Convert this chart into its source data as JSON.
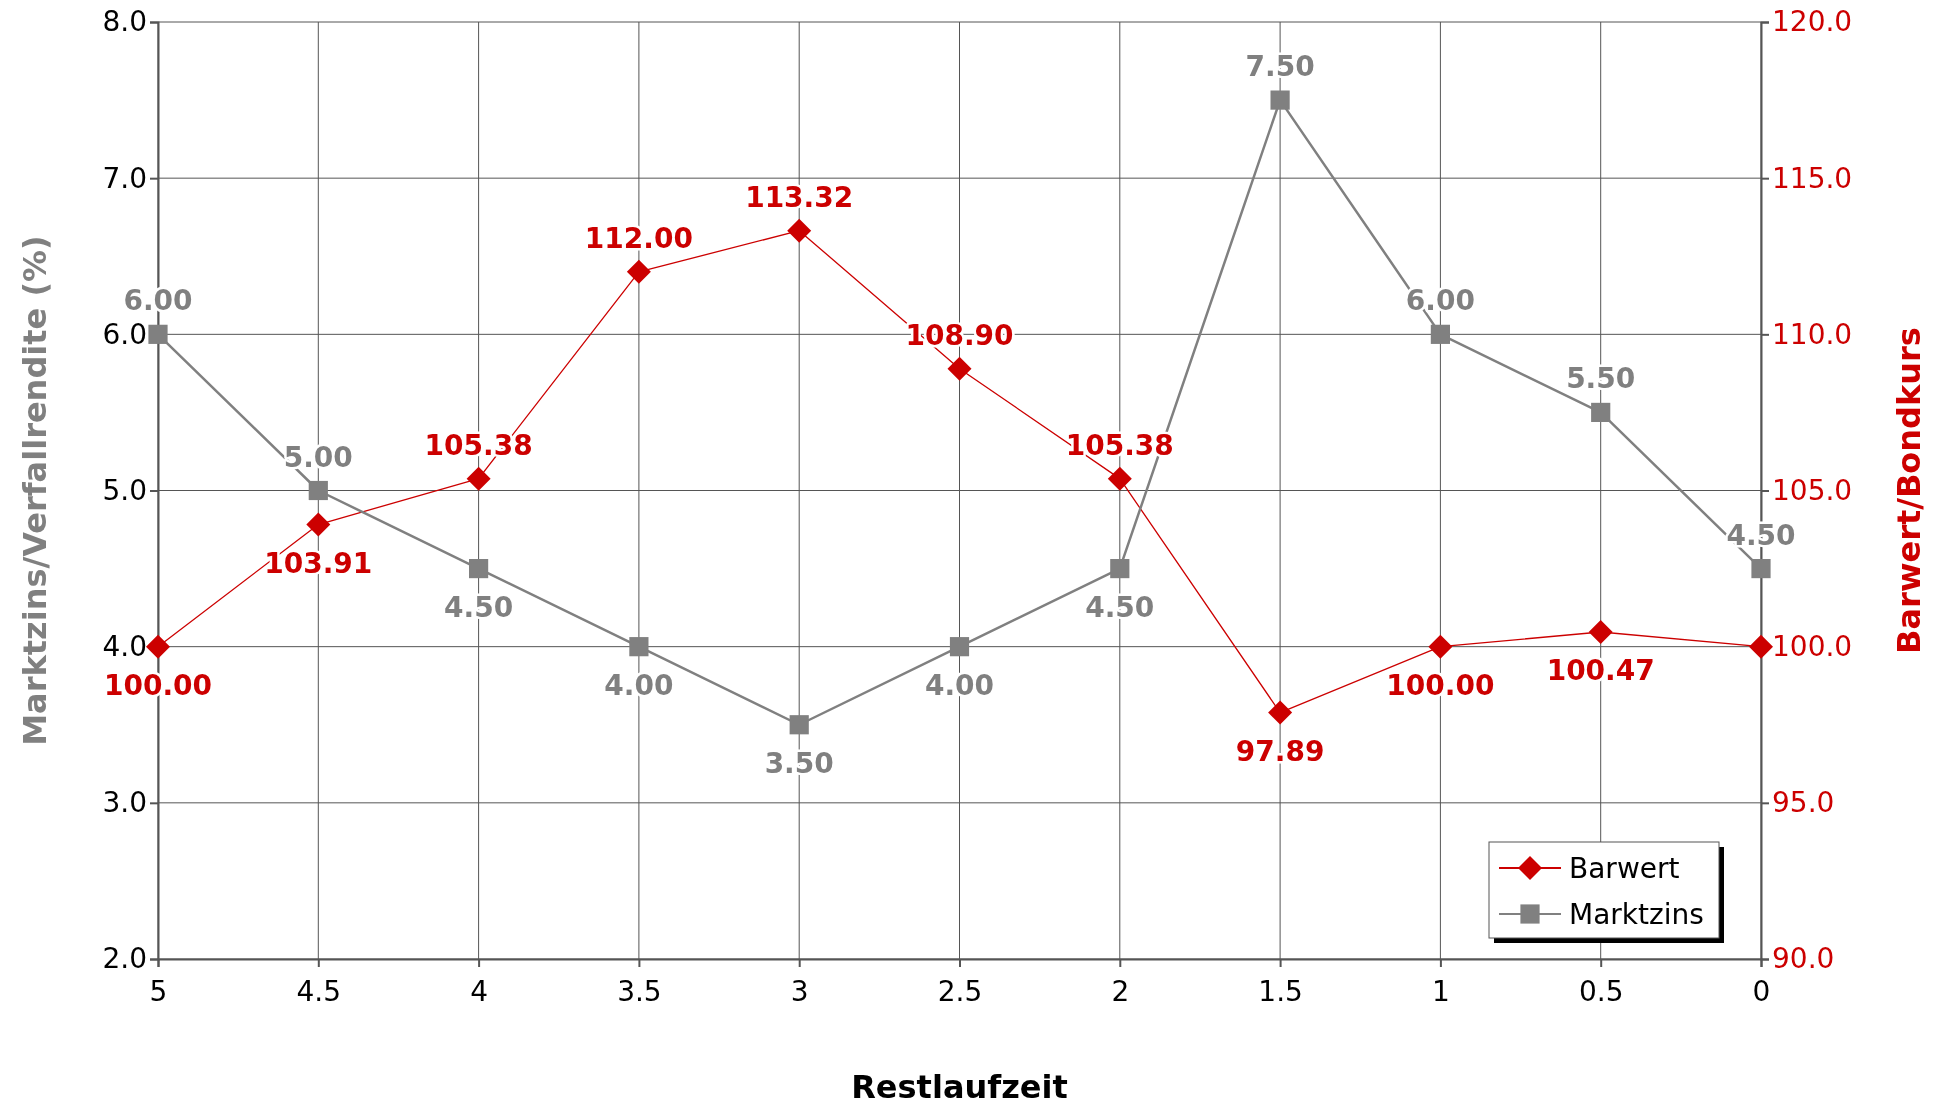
{
  "chart_data": {
    "type": "line",
    "xlabel": "Restlaufzeit",
    "ylabel": "Marktzins/Verfallrendite (%)",
    "y2label": "Barwert/Bondkurs",
    "x": [
      5,
      4.5,
      4,
      3.5,
      3,
      2.5,
      2,
      1.5,
      1,
      0.5,
      0
    ],
    "xlim": [
      5,
      0
    ],
    "xticks": [
      5,
      4.5,
      4,
      3.5,
      3,
      2.5,
      2,
      1.5,
      1,
      0.5,
      0
    ],
    "ylim": [
      2,
      8
    ],
    "yticks": [
      {
        "value": 2,
        "label": "2.0"
      },
      {
        "value": 3,
        "label": "3.0"
      },
      {
        "value": 4,
        "label": "4.0"
      },
      {
        "value": 5,
        "label": "5.0"
      },
      {
        "value": 6,
        "label": "6.0"
      },
      {
        "value": 7,
        "label": "7.0"
      },
      {
        "value": 8,
        "label": "8.0"
      }
    ],
    "y2lim": [
      90,
      120
    ],
    "y2ticks": [
      {
        "value": 90,
        "label": "90.0"
      },
      {
        "value": 95,
        "label": "95.0"
      },
      {
        "value": 100,
        "label": "100.0"
      },
      {
        "value": 105,
        "label": "105.0"
      },
      {
        "value": 110,
        "label": "110.0"
      },
      {
        "value": 115,
        "label": "115.0"
      },
      {
        "value": 120,
        "label": "120.0"
      }
    ],
    "grid": true,
    "legend": "bottom right",
    "series": [
      {
        "name": "Barwert",
        "color": "#cc0000",
        "axis": "y2",
        "marker": "diamond",
        "values": [
          100,
          103.91,
          105.38,
          112,
          113.32,
          108.9,
          105.38,
          97.89,
          100,
          100.47,
          100
        ],
        "value_labels": [
          "100.00",
          "103.91",
          "105.38",
          "112.00",
          "113.32",
          "108.90",
          "105.38",
          "97.89",
          "100.00",
          "100.47",
          null
        ]
      },
      {
        "name": "Marktzins",
        "color": "#808080",
        "marker": "square",
        "values": [
          6,
          5,
          4.5,
          4,
          3.5,
          4,
          4.5,
          7.5,
          6,
          5.5,
          4.5
        ],
        "value_labels": [
          "6.00",
          "5.00",
          "4.50",
          "4.00",
          "3.50",
          "4.00",
          "4.50",
          "7.50",
          "6.00",
          "5.50",
          "4.50"
        ]
      }
    ]
  }
}
